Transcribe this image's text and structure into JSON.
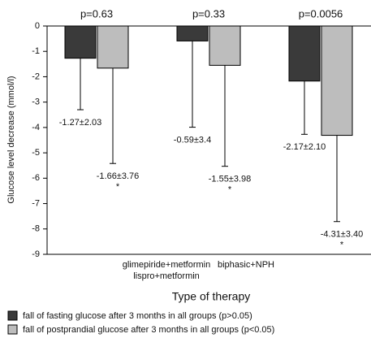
{
  "chart_data": {
    "type": "bar",
    "y_label": "Glucose level decrease (mmol/l)",
    "x_label": "Type of therapy",
    "categories": [
      "glimepiride+metformin",
      "lispro+metformin",
      "biphasic+NPH"
    ],
    "annotations": [
      "p=0.63",
      "p=0.33",
      "p=0.0056"
    ],
    "series": [
      {
        "name": "fall of fasting glucose after 3 months in all groups (p>0.05)",
        "color": "#3a3a3a",
        "values": [
          -1.27,
          -0.59,
          -2.17
        ],
        "errors": [
          2.03,
          3.4,
          2.1
        ],
        "value_labels": [
          "-1.27±2.03",
          "-0.59±3.4",
          "-2.17±2.10"
        ]
      },
      {
        "name": "fall of postprandial glucose after 3 months in all groups (p<0.05)",
        "color": "#bdbdbd",
        "values": [
          -1.66,
          -1.55,
          -4.31
        ],
        "errors": [
          3.76,
          3.98,
          3.4
        ],
        "value_labels": [
          "-1.66±3.76",
          "-1.55±3.98",
          "-4.31±3.40"
        ],
        "annotations": [
          "*",
          "*",
          "*"
        ]
      }
    ],
    "ylim": [
      -9,
      0
    ],
    "yticks": [
      0,
      -1,
      -2,
      -3,
      -4,
      -5,
      -6,
      -7,
      -8,
      -9
    ]
  }
}
